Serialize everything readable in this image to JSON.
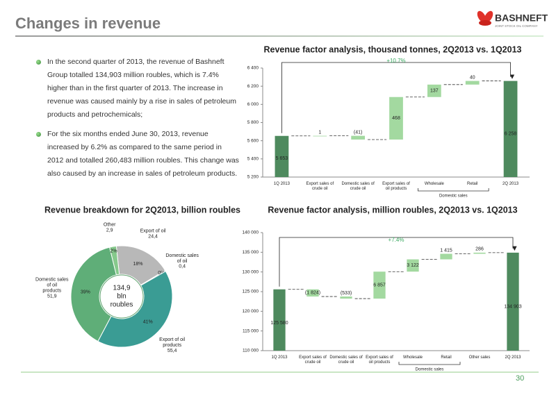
{
  "header": {
    "title": "Changes in revenue",
    "logo": "BASHNEFT",
    "logo_sub": "JOINT STOCK OIL COMPANY"
  },
  "bullets": [
    "In the second quarter of 2013, the revenue of Bashneft Group totalled 134,903 million roubles, which is 7.4% higher than in the first quarter of 2013. The increase in revenue was caused mainly by a rise in sales of petroleum products and petrochemicals;",
    "For the six months ended June 30, 2013, revenue increased by 6.2% as compared to the same period in 2012 and totalled 260,483 million roubles. This change was also caused by an increase in sales of petroleum products."
  ],
  "page_number": "30",
  "chart_data": [
    {
      "type": "waterfall",
      "title": "Revenue factor analysis, thousand tonnes, 2Q2013 vs. 1Q2013",
      "categories": [
        "1Q 2013",
        "Export sales of crude oil",
        "Domestic sales of crude oil",
        "Export sales of oil products",
        "Wholesale",
        "Retail",
        "2Q 2013"
      ],
      "values": [
        5653,
        1,
        -41,
        468,
        137,
        40,
        6258
      ],
      "value_labels": [
        "5 653",
        "1",
        "(41)",
        "468",
        "137",
        "40",
        "6 258"
      ],
      "total_color": "#4e8a5e",
      "delta_color": "#a3d9a0",
      "ylim": [
        5200,
        6400
      ],
      "yticks": [
        {
          "value": 5200,
          "label": "5 200"
        },
        {
          "value": 5400,
          "label": "5 400"
        },
        {
          "value": 5600,
          "label": "5 600"
        },
        {
          "value": 5800,
          "label": "5 800"
        },
        {
          "value": 6000,
          "label": "6 000"
        },
        {
          "value": 6200,
          "label": "6 200"
        },
        {
          "value": 6400,
          "label": "6 400"
        }
      ],
      "annotation": "+10.7%",
      "group": {
        "label": "Domestic sales",
        "span": [
          "Wholesale",
          "Retail"
        ]
      }
    },
    {
      "type": "donut",
      "title": "Revenue breakdown for 2Q2013, billion roubles",
      "categories": [
        "Export of oil",
        "Domestic sales of oil",
        "Export of oil products",
        "Domestic sales of oil products",
        "Other"
      ],
      "values": [
        24.4,
        0.4,
        55.4,
        51.9,
        2.9
      ],
      "value_labels": [
        "24,4",
        "0,4",
        "55,4",
        "51,9",
        "2,9"
      ],
      "percent_labels": [
        "18%",
        "0%",
        "41%",
        "39%",
        "2%"
      ],
      "colors": [
        "#b8b8b8",
        "#3f8f8a",
        "#3a9c94",
        "#5fae78",
        "#86c98c"
      ],
      "center_label": [
        "134,9",
        "bln",
        "roubles"
      ]
    },
    {
      "type": "waterfall",
      "title": "Revenue factor analysis, million roubles, 2Q2013 vs. 1Q2013",
      "categories": [
        "1Q 2013",
        "Export sales of crude oil",
        "Domestic sales of crude oil",
        "Export sales of oil products",
        "Wholesale",
        "Retail",
        "Other sales",
        "2Q 2013"
      ],
      "values": [
        125580,
        -1824,
        -533,
        6857,
        3122,
        1415,
        286,
        134903
      ],
      "value_labels": [
        "125 580",
        "(1 824)",
        "(533)",
        "6 857",
        "3 122",
        "1 415",
        "286",
        "134 903"
      ],
      "total_color": "#4e8a5e",
      "delta_color": "#a3d9a0",
      "ylim": [
        110000,
        140000
      ],
      "yticks": [
        {
          "value": 110000,
          "label": "110 000"
        },
        {
          "value": 115000,
          "label": "115 000"
        },
        {
          "value": 120000,
          "label": "120 000"
        },
        {
          "value": 125000,
          "label": "125 000"
        },
        {
          "value": 130000,
          "label": "130 000"
        },
        {
          "value": 135000,
          "label": "135 000"
        },
        {
          "value": 140000,
          "label": "140 000"
        }
      ],
      "annotation": "+7.4%",
      "group": {
        "label": "Domestic sales",
        "span": [
          "Wholesale",
          "Retail"
        ]
      }
    }
  ]
}
